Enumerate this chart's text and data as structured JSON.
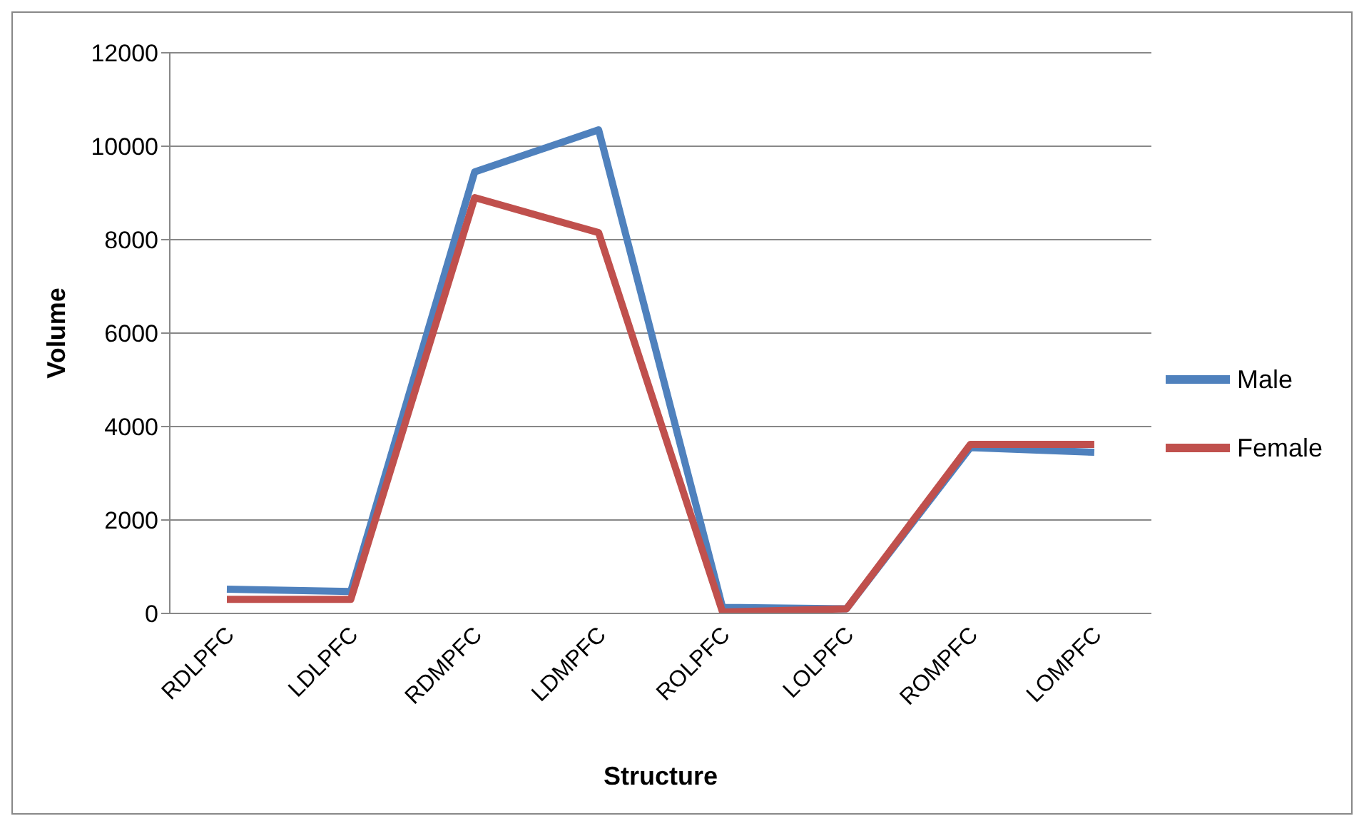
{
  "chart_data": {
    "type": "line",
    "xlabel": "Structure",
    "ylabel": "Volume",
    "categories": [
      "RDLPFC",
      "LDLPFC",
      "RDMPFC",
      "LDMPFC",
      "ROLPFC",
      "LOLPFC",
      "ROMPFC",
      "LOMPFC"
    ],
    "series": [
      {
        "name": "Male",
        "color": "#4f81bd",
        "values": [
          520,
          470,
          9450,
          10350,
          130,
          100,
          3550,
          3450
        ]
      },
      {
        "name": "Female",
        "color": "#c0504d",
        "values": [
          300,
          300,
          8900,
          8150,
          30,
          100,
          3620,
          3620
        ]
      }
    ],
    "ylim": [
      0,
      12000
    ],
    "yticks": [
      0,
      2000,
      4000,
      6000,
      8000,
      10000,
      12000
    ],
    "grid": "y",
    "legend": "right",
    "marker": "none",
    "line_style": "solid"
  }
}
